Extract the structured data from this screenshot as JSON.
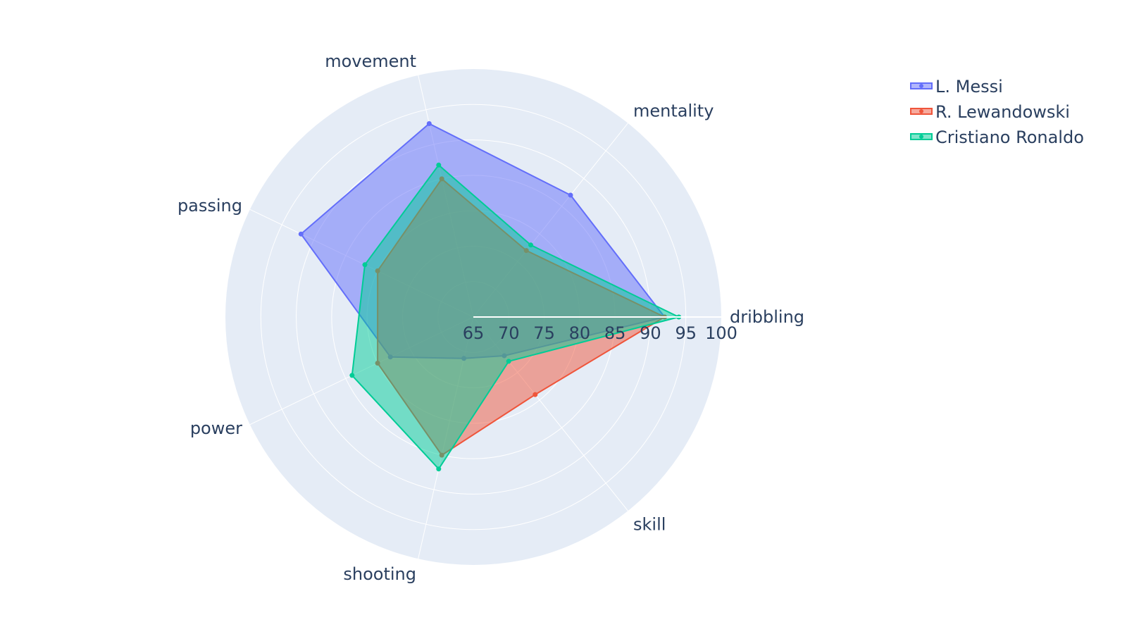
{
  "chart_data": {
    "type": "radar",
    "categories": [
      "dribbling",
      "mentality",
      "movement",
      "passing",
      "power",
      "shooting",
      "skill"
    ],
    "radial_ticks": [
      "65",
      "70",
      "75",
      "80",
      "85",
      "90",
      "95",
      "100"
    ],
    "range": [
      65,
      100
    ],
    "grid": true,
    "legend_position": "top-right",
    "series": [
      {
        "name": "L. Messi",
        "color": "#636efa",
        "values": [
          92,
          87,
          93,
          92,
          78,
          71,
          72
        ]
      },
      {
        "name": "R. Lewandowski",
        "color": "#ef553b",
        "values": [
          92,
          77,
          85,
          80,
          80,
          85,
          79
        ]
      },
      {
        "name": "Cristiano Ronaldo",
        "color": "#00cc96",
        "values": [
          94,
          78,
          87,
          82,
          84,
          87,
          73
        ]
      }
    ]
  }
}
